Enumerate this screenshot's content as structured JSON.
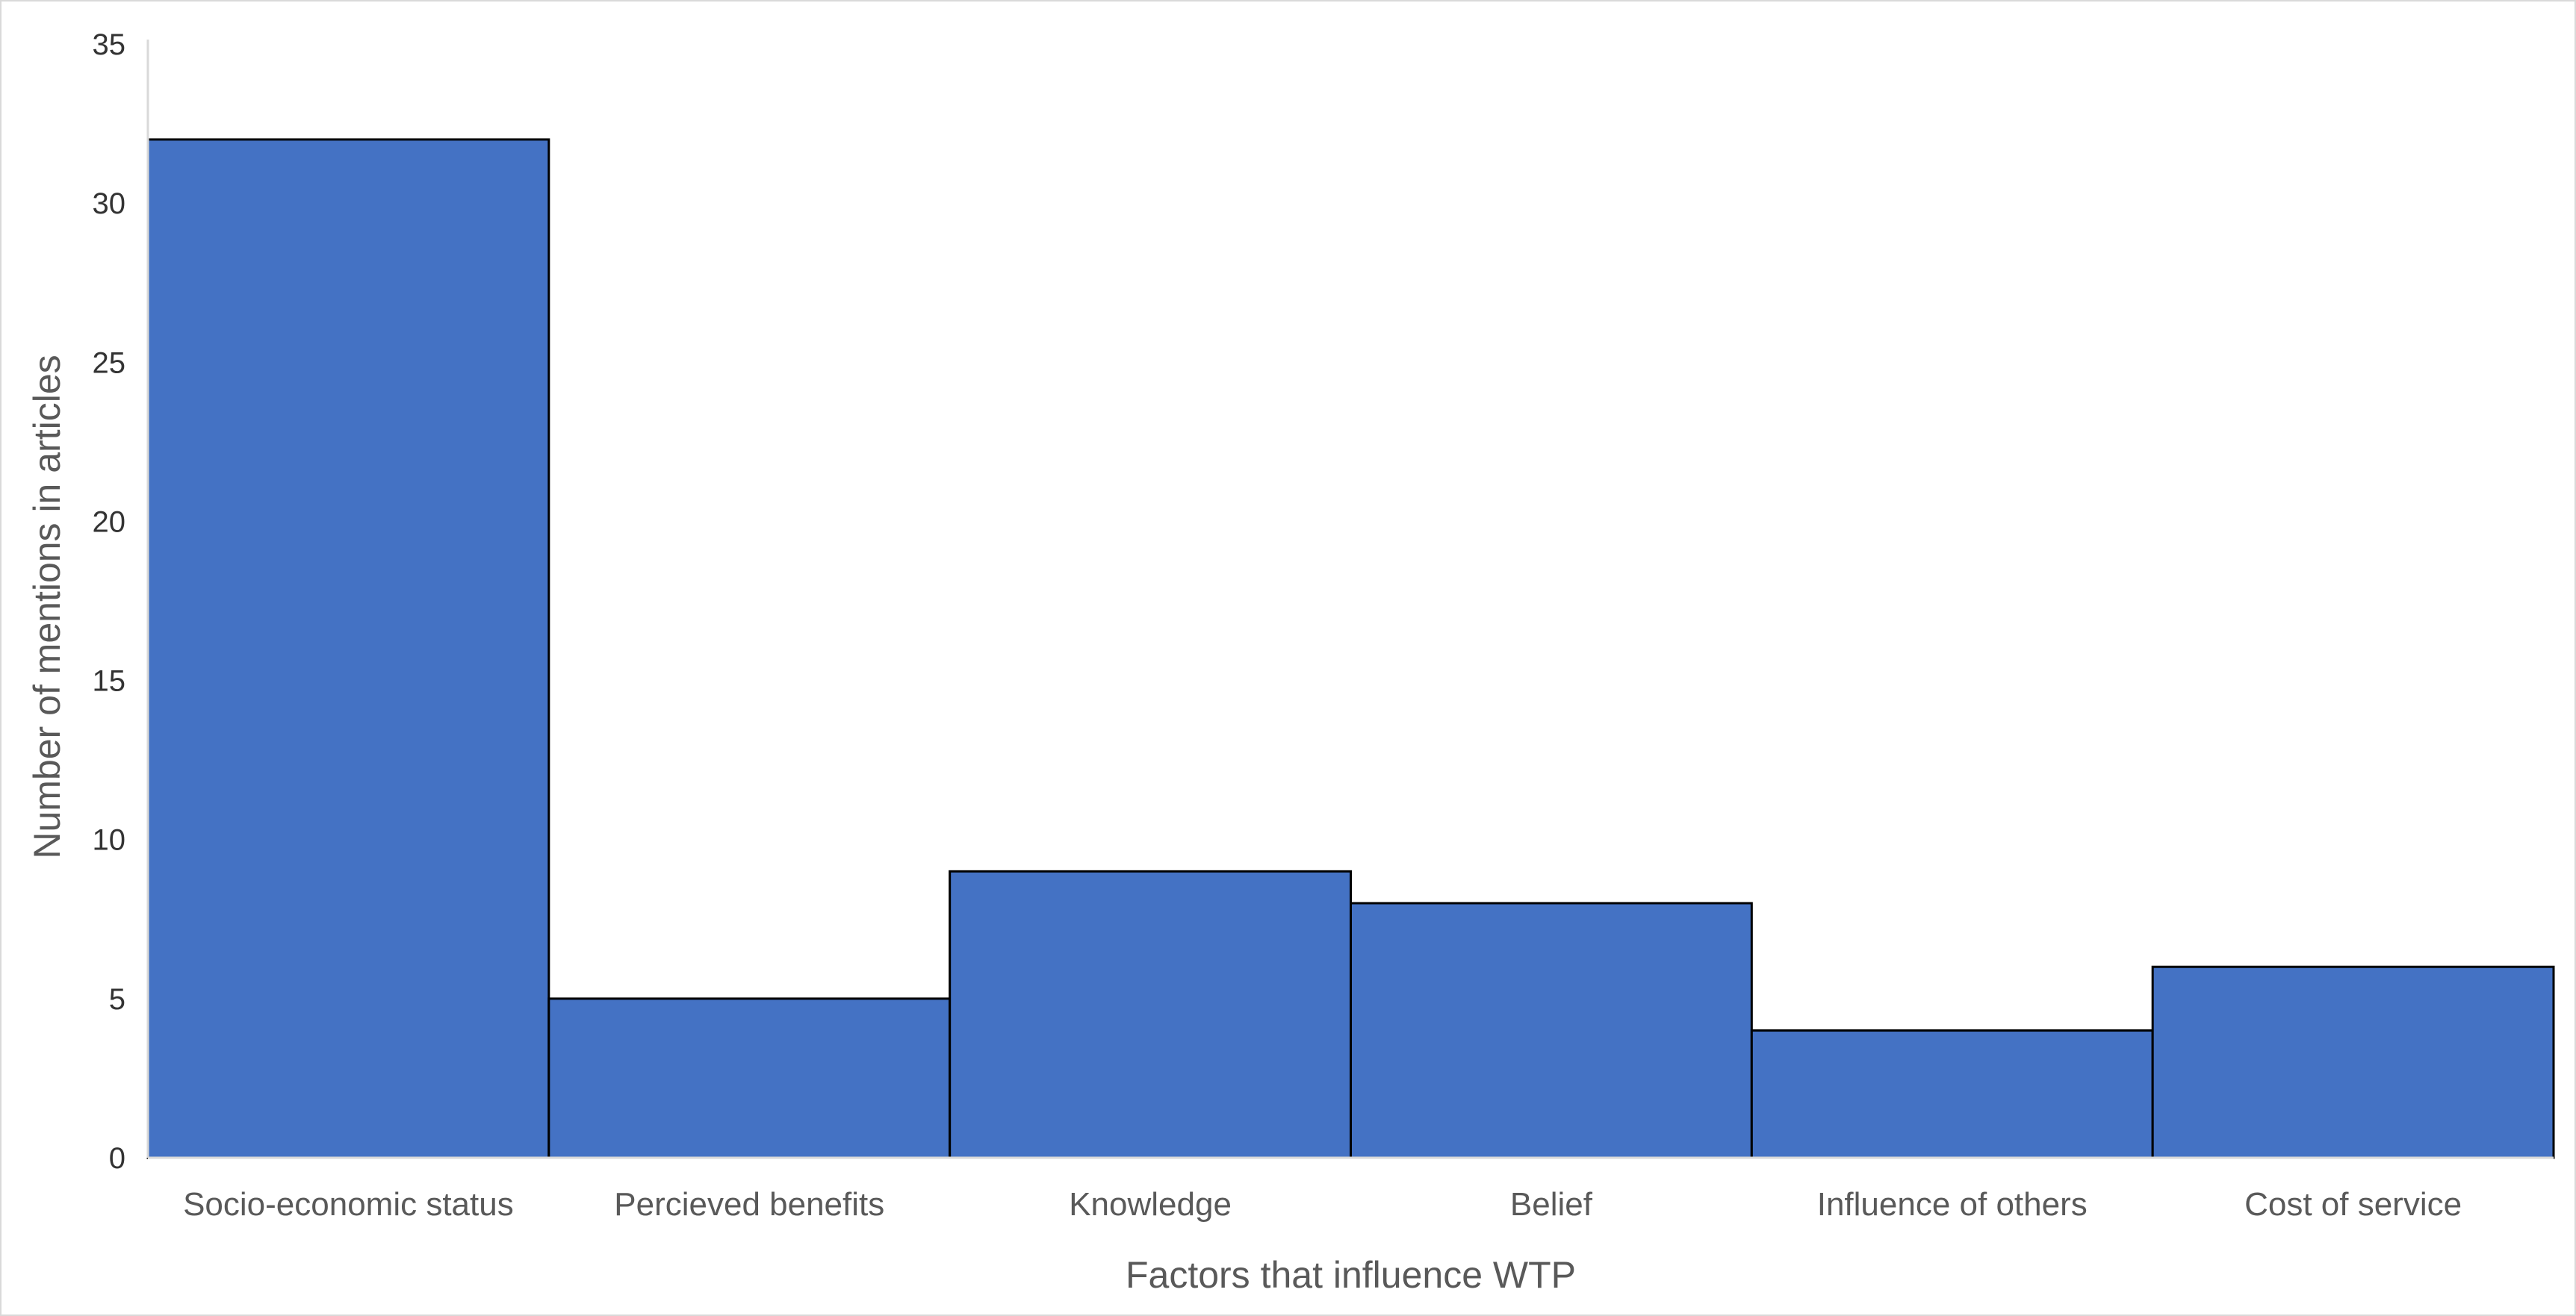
{
  "chart_data": {
    "type": "bar",
    "title": "",
    "xlabel": "Factors that influence WTP",
    "ylabel": "Number of mentions in articles",
    "categories": [
      "Socio-economic status",
      "Percieved benefits",
      "Knowledge",
      "Belief",
      "Influence of others",
      "Cost of service"
    ],
    "values": [
      32,
      5,
      9,
      8,
      4,
      6
    ],
    "ylim": [
      0,
      35
    ],
    "yticks": [
      0,
      5,
      10,
      15,
      20,
      25,
      30,
      35
    ],
    "grid": false,
    "legend": "none",
    "bar_gap": 0,
    "colors": {
      "bar_fill": "#4472c4",
      "bar_stroke": "#000000",
      "axis": "#d9d9d9"
    }
  }
}
